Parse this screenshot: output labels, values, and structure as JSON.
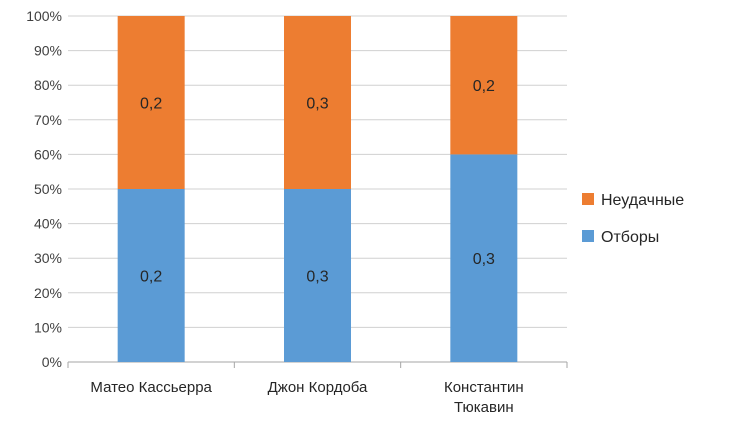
{
  "chart_data": {
    "type": "bar",
    "stacked": "percent",
    "categories": [
      "Матео Кассьерра",
      "Джон Кордоба",
      "Константин Тюкавин"
    ],
    "category_lines": [
      [
        "Матео Кассьерра"
      ],
      [
        "Джон Кордоба"
      ],
      [
        "Константин",
        "Тюкавин"
      ]
    ],
    "series": [
      {
        "name": "Отборы",
        "color": "#5b9bd5",
        "values": [
          0.2,
          0.3,
          0.3
        ],
        "percent": [
          50,
          50,
          60
        ],
        "labels": [
          "0,2",
          "0,3",
          "0,3"
        ]
      },
      {
        "name": "Неудачные",
        "color": "#ed7d31",
        "values": [
          0.2,
          0.3,
          0.2
        ],
        "percent": [
          50,
          50,
          40
        ],
        "labels": [
          "0,2",
          "0,3",
          "0,2"
        ]
      }
    ],
    "y_ticks": [
      "0%",
      "10%",
      "20%",
      "30%",
      "40%",
      "50%",
      "60%",
      "70%",
      "80%",
      "90%",
      "100%"
    ],
    "ylim": [
      0,
      100
    ],
    "grid": true,
    "legend": {
      "position": "right",
      "order": [
        "Неудачные",
        "Отборы"
      ]
    }
  }
}
